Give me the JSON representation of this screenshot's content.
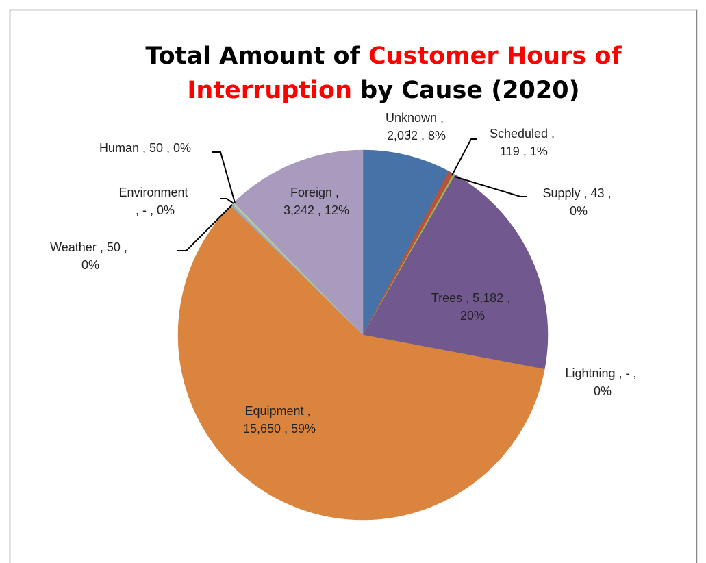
{
  "chart_data": {
    "type": "pie",
    "title": {
      "lines": [
        [
          {
            "text": "Total Amount of ",
            "color": "#000000"
          },
          {
            "text": "Customer Hours of",
            "color": "#ff0000"
          }
        ],
        [
          {
            "text": "Interruption",
            "color": "#ff0000"
          },
          {
            "text": " by Cause (2020)",
            "color": "#000000"
          }
        ]
      ]
    },
    "label_separator": " , ",
    "categories": [
      "Unknown",
      "Scheduled",
      "Supply",
      "Trees",
      "Lightning",
      "Equipment",
      "Weather",
      "Environment",
      "Human",
      "Foreign"
    ],
    "values": [
      2032,
      119,
      43,
      5182,
      0,
      15650,
      50,
      0,
      50,
      3242
    ],
    "value_labels": [
      "2,032",
      "119",
      "43",
      "5,182",
      "-",
      "15,650",
      "50",
      "-",
      "50",
      "3,242"
    ],
    "percent_labels": [
      "8%",
      "1%",
      "0%",
      "20%",
      "0%",
      "59%",
      "0%",
      "0%",
      "0%",
      "12%"
    ],
    "colors": [
      "#4672a8",
      "#b5533c",
      "#98b954",
      "#71588f",
      "#4198af",
      "#db843d",
      "#93a9cf",
      "#d19392",
      "#b9cd96",
      "#a99bbd"
    ]
  }
}
